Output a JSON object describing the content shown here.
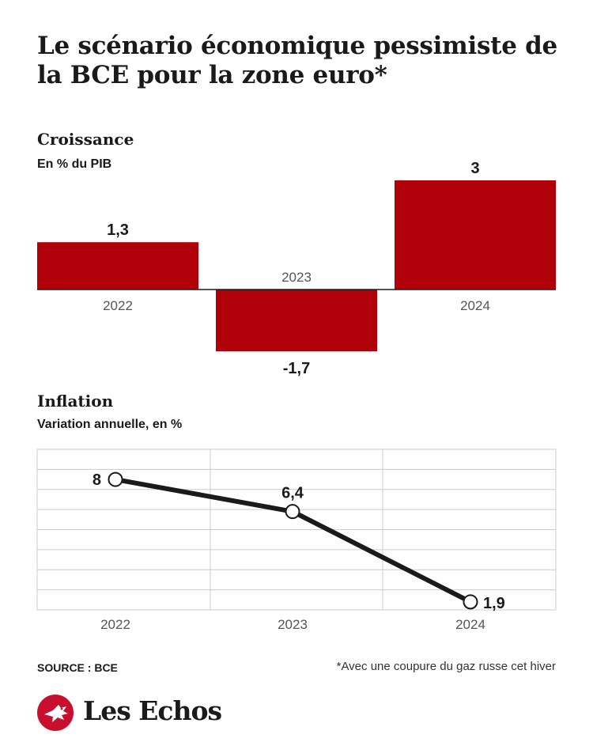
{
  "title": "Le scénario économique pessimiste de la BCE pour la zone euro*",
  "colors": {
    "bar": "#b0000a",
    "line": "#1a1a1a",
    "grid": "#cccccc",
    "logo": "#c8102e"
  },
  "source": "SOURCE : BCE",
  "footnote": "*Avec une coupure du gaz russe cet hiver",
  "logo": {
    "text": "Les Echos",
    "icon": "echos-bird-logo-icon"
  },
  "chart_data": [
    {
      "type": "bar",
      "title": "Croissance",
      "subtitle": "En % du PIB",
      "categories": [
        "2022",
        "2023",
        "2024"
      ],
      "values": [
        1.3,
        -1.7,
        3
      ],
      "value_labels": [
        "1,3",
        "-1,7",
        "3"
      ],
      "ylim": [
        -1.7,
        3
      ],
      "grid": false
    },
    {
      "type": "line",
      "title": "Inflation",
      "subtitle": "Variation annuelle, en %",
      "x": [
        "2022",
        "2023",
        "2024"
      ],
      "values": [
        8,
        6.4,
        1.9
      ],
      "value_labels": [
        "8",
        "6,4",
        "1,9"
      ],
      "ylim": [
        1.5,
        9.5
      ],
      "grid": true
    }
  ]
}
